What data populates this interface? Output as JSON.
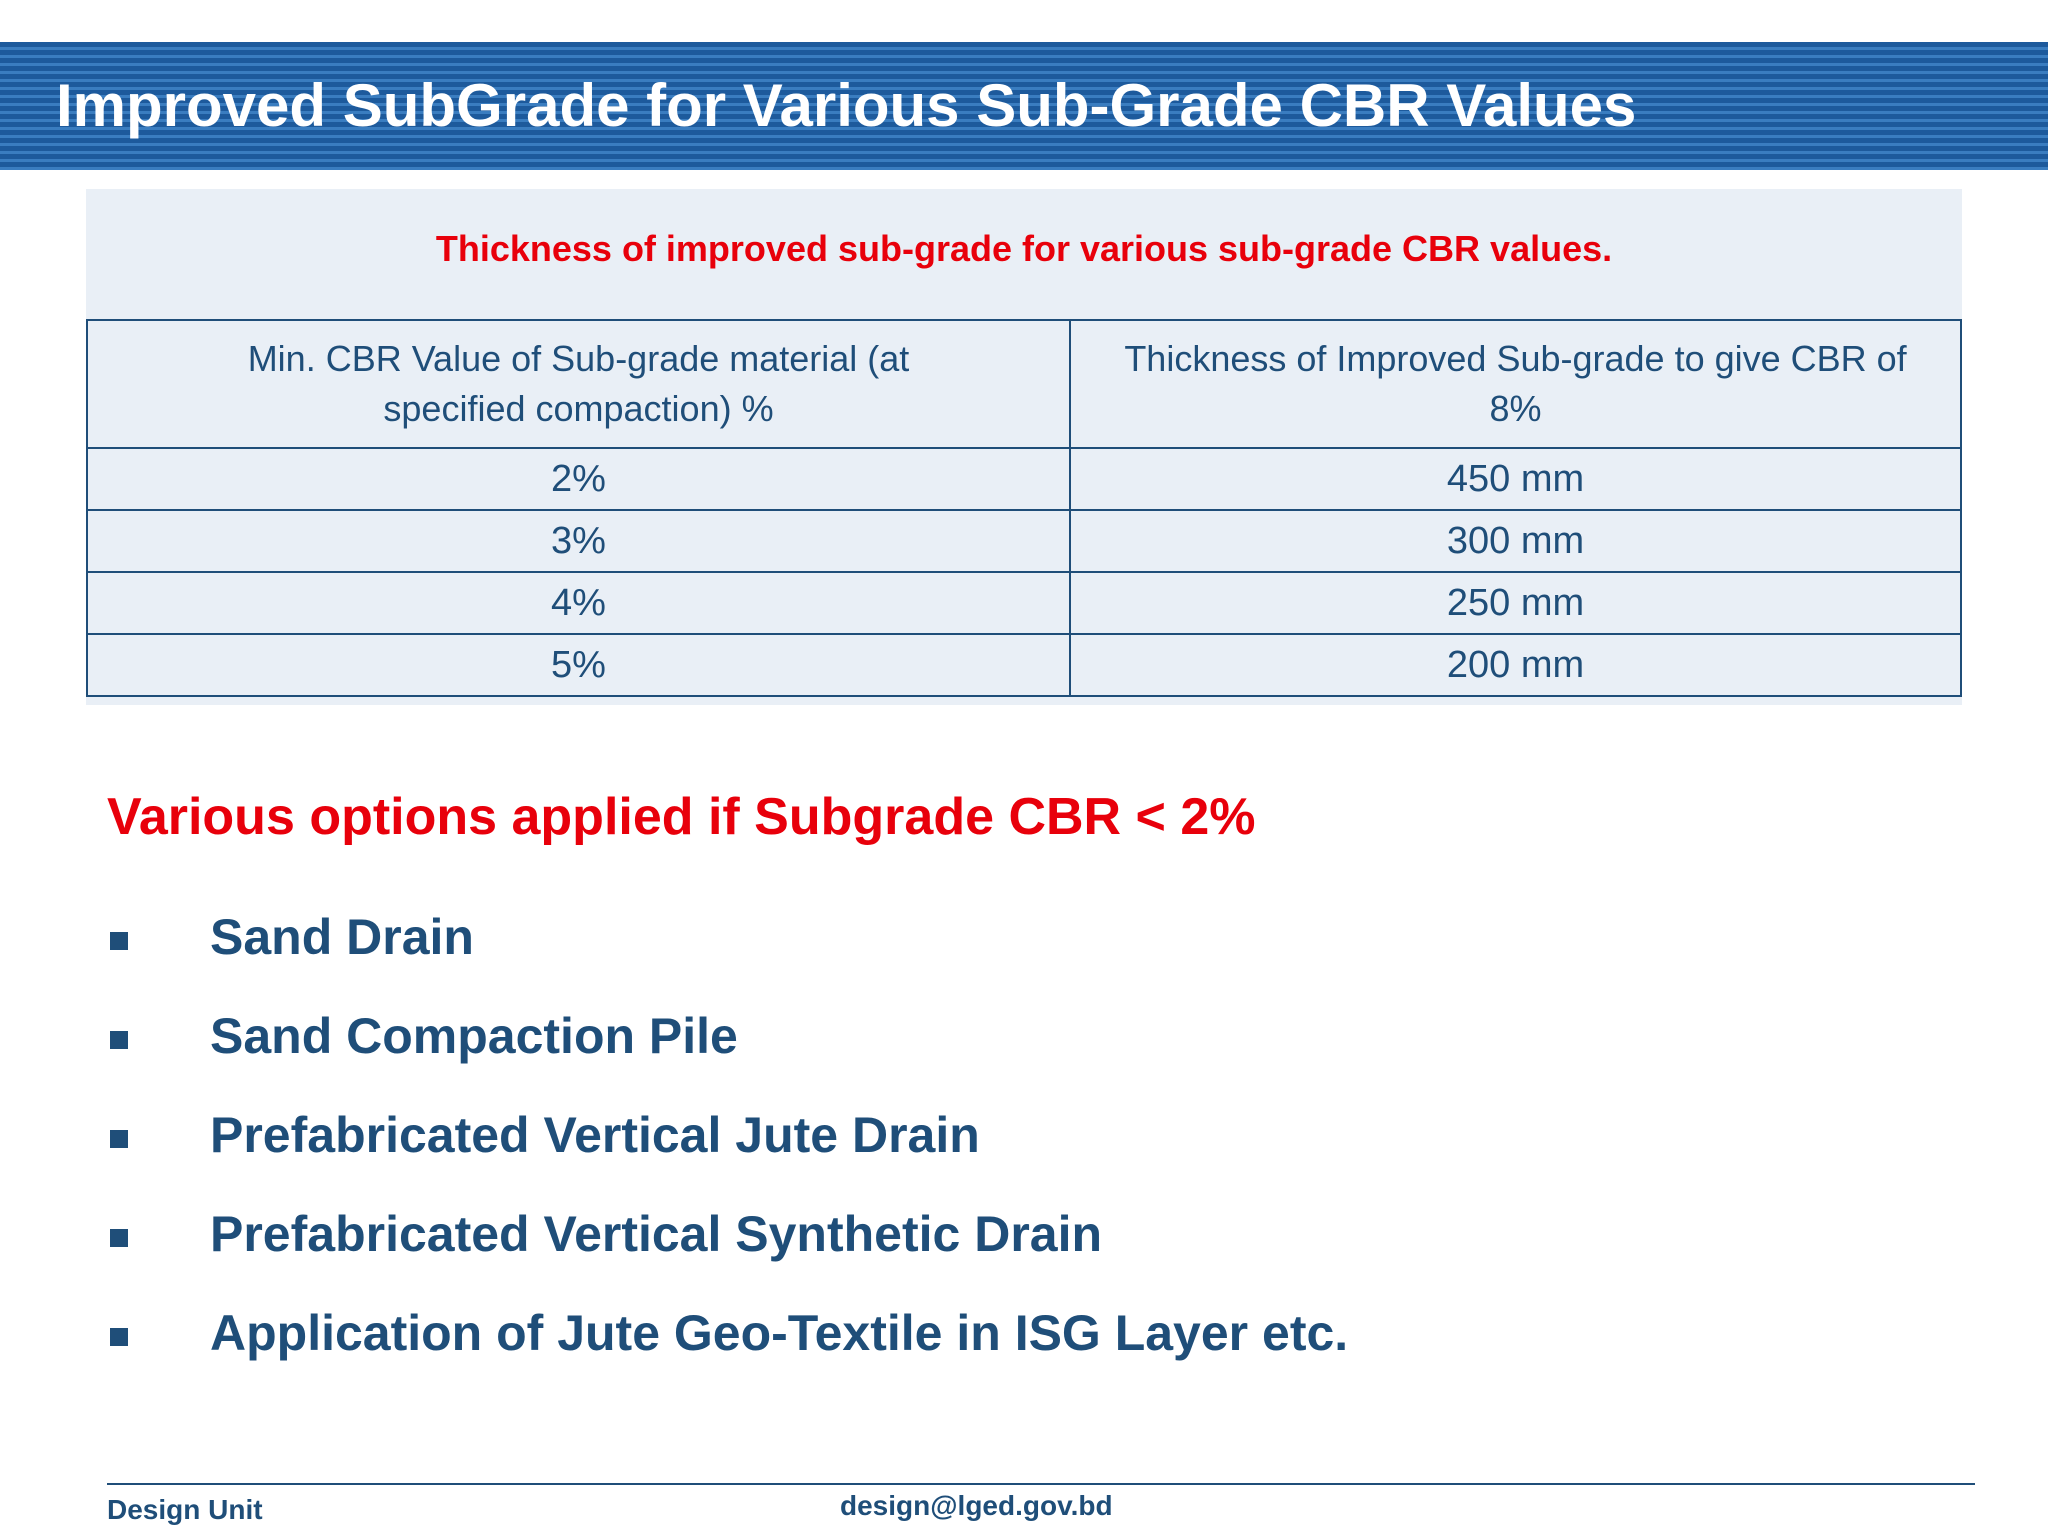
{
  "header": {
    "title": "Improved SubGrade for Various Sub-Grade CBR Values"
  },
  "table": {
    "caption": "Thickness of improved sub-grade for various sub-grade CBR values.",
    "header": [
      "Min. CBR Value of Sub-grade material (at specified compaction) %",
      "Thickness of Improved Sub-grade to give CBR of 8%"
    ],
    "rows": [
      [
        "2%",
        "450 mm"
      ],
      [
        "3%",
        "300 mm"
      ],
      [
        "4%",
        "250 mm"
      ],
      [
        "5%",
        "200 mm"
      ]
    ]
  },
  "options": {
    "heading": "Various options applied if Subgrade CBR < 2%",
    "items": [
      "Sand Drain",
      "Sand Compaction Pile",
      "Prefabricated Vertical Jute Drain",
      "Prefabricated Vertical Synthetic Drain",
      "Application of Jute Geo-Textile in ISG Layer etc."
    ]
  },
  "footer": {
    "left": "Design Unit",
    "email": "design@lged.gov.bd"
  }
}
